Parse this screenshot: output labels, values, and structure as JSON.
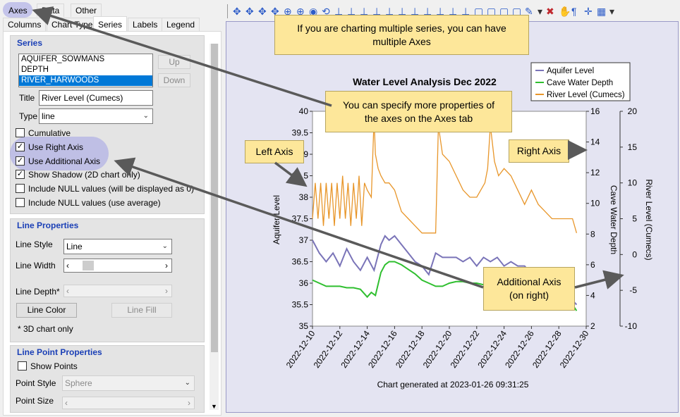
{
  "tabs_top": [
    "Axes",
    "Data",
    "Other"
  ],
  "tabs_second": [
    "Columns",
    "Chart Type",
    "Series",
    "Labels",
    "Legend"
  ],
  "series": {
    "title": "Series",
    "items": [
      "AQUIFER_SOWMANS",
      "DEPTH",
      "RIVER_HARWOODS"
    ],
    "selected_index": 2,
    "up_label": "Up",
    "down_label": "Down",
    "title_label": "Title",
    "title_value": "River Level (Cumecs)",
    "type_label": "Type",
    "type_value": "line",
    "checkboxes": [
      {
        "label": "Cumulative",
        "checked": false
      },
      {
        "label": "Use Right Axis",
        "checked": true
      },
      {
        "label": "Use Additional Axis",
        "checked": true
      },
      {
        "label": "Show Shadow (2D chart only)",
        "checked": true
      },
      {
        "label": "Include NULL values (will be displayed as 0)",
        "checked": false
      },
      {
        "label": "Include NULL values (use average)",
        "checked": false
      }
    ]
  },
  "line_properties": {
    "title": "Line Properties",
    "style_label": "Line Style",
    "style_value": "Line",
    "width_label": "Line Width",
    "depth_label": "Line Depth*",
    "color_button": "Line Color",
    "fill_button": "Line Fill",
    "footnote": "* 3D chart only"
  },
  "point_properties": {
    "title": "Line Point Properties",
    "show_points_label": "Show Points",
    "style_label": "Point Style",
    "style_value": "Sphere",
    "size_label": "Point Size"
  },
  "toolbar_icons": [
    "move-icon",
    "move-icon",
    "move-icon",
    "move-icon",
    "zoom-icon",
    "zoom-icon",
    "eye-icon",
    "rotate-icon",
    "axis-icon",
    "axis-icon",
    "axis-icon",
    "axis-icon",
    "axis-icon",
    "axis-icon",
    "axis-icon",
    "axis-icon",
    "axis-icon",
    "axis-icon",
    "axis-icon",
    "cube-icon",
    "cube-icon",
    "cube-icon",
    "cube-icon",
    "pen-icon",
    "dropdown-icon",
    "cancel-icon",
    "hand-icon",
    "annotate-icon",
    "crosshair-icon",
    "export-icon",
    "dropdown-icon"
  ],
  "callouts": {
    "multiple_axes": "If you are charting multiple series, you can have multiple Axes",
    "axes_tab": "You can specify more properties of the axes on the Axes tab",
    "left_axis": "Left Axis",
    "right_axis": "Right Axis",
    "additional_axis": "Additional Axis (on right)"
  },
  "chart_data": {
    "type": "line",
    "title": "Water Level Analysis Dec 2022",
    "footer": "Chart generated at 2023-01-26 09:31:25",
    "x_ticks": [
      "2022-12-10",
      "2022-12-12",
      "2022-12-14",
      "2022-12-16",
      "2022-12-18",
      "2022-12-20",
      "2022-12-22",
      "2022-12-24",
      "2022-12-26",
      "2022-12-28",
      "2022-12-30"
    ],
    "axes": {
      "left": {
        "label": "Aquifer Level",
        "range": [
          35,
          40
        ],
        "ticks": [
          "35",
          "35.5",
          "36",
          "36.5",
          "37",
          "37.5",
          "38",
          "38.5",
          "39",
          "39.5",
          "40"
        ]
      },
      "right": {
        "label": "Cave Water Depth",
        "range": [
          2,
          16
        ],
        "ticks": [
          "2",
          "4",
          "6",
          "8",
          "10",
          "12",
          "14",
          "16"
        ]
      },
      "additional": {
        "label": "River Level (Cumecs)",
        "range": [
          -10,
          20
        ],
        "ticks": [
          "-10",
          "-5",
          "0",
          "5",
          "10",
          "15",
          "20"
        ]
      }
    },
    "legend_position": "top-right",
    "series": [
      {
        "name": "Aquifer Level",
        "axis": "left",
        "color": "#7a74b8",
        "x": [
          10,
          10.5,
          11,
          11.5,
          12,
          12.5,
          13,
          13.5,
          14,
          14.5,
          15,
          15.3,
          15.6,
          16,
          16.5,
          17,
          17.5,
          18,
          18.5,
          19,
          19.5,
          20,
          20.5,
          21,
          21.5,
          22,
          22.5,
          23,
          23.5,
          24,
          24.5,
          25,
          25.5,
          26,
          26.5,
          27,
          27.5,
          28,
          28.5,
          29,
          29.3
        ],
        "y": [
          37.0,
          36.7,
          36.5,
          36.7,
          36.4,
          36.8,
          36.5,
          36.3,
          36.6,
          36.3,
          36.9,
          37.1,
          37.0,
          37.1,
          36.9,
          36.7,
          36.5,
          36.4,
          36.2,
          36.7,
          36.6,
          36.6,
          36.6,
          36.5,
          36.6,
          36.4,
          36.6,
          36.5,
          36.6,
          36.4,
          36.5,
          36.4,
          36.4,
          36.2,
          36.1,
          36.1,
          36.0,
          35.9,
          35.8,
          35.6,
          35.5
        ]
      },
      {
        "name": "Cave Water Depth",
        "axis": "right",
        "color": "#2fbf2f",
        "x": [
          10,
          10.5,
          11,
          11.5,
          12,
          12.5,
          13,
          13.5,
          14,
          14.3,
          14.6,
          15,
          15.3,
          15.6,
          16,
          16.5,
          17,
          17.5,
          18,
          18.5,
          19,
          19.5,
          20,
          20.5,
          21,
          21.5,
          22,
          22.5,
          23,
          23.5,
          24,
          24.5,
          25,
          25.5,
          26,
          26.5,
          27,
          27.5,
          28,
          28.5,
          29,
          29.3
        ],
        "y": [
          5.0,
          4.8,
          4.6,
          4.6,
          4.6,
          4.5,
          4.5,
          4.4,
          3.9,
          4.2,
          4.0,
          5.5,
          6.0,
          6.2,
          6.2,
          6.0,
          5.7,
          5.4,
          5.0,
          4.8,
          4.6,
          4.6,
          4.8,
          4.9,
          4.9,
          4.8,
          4.8,
          4.7,
          4.8,
          4.9,
          4.8,
          4.7,
          4.7,
          4.6,
          4.5,
          4.4,
          4.3,
          4.1,
          4.0,
          3.8,
          3.4,
          3.0
        ]
      },
      {
        "name": "River Level (Cumecs)",
        "axis": "additional",
        "color": "#e8962a",
        "x": [
          10,
          10.2,
          10.4,
          10.6,
          10.8,
          11,
          11.2,
          11.4,
          11.6,
          11.8,
          12,
          12.2,
          12.4,
          12.6,
          12.8,
          13,
          13.2,
          13.4,
          13.6,
          13.8,
          14,
          14.3,
          14.5,
          14.6,
          14.8,
          15,
          15.3,
          15.6,
          16,
          16.5,
          17,
          17.5,
          18,
          18.5,
          18.8,
          19,
          19.2,
          19.5,
          20,
          20.5,
          21,
          21.5,
          22,
          22.3,
          22.6,
          22.8,
          23,
          23.3,
          23.6,
          24,
          24.5,
          25,
          25.5,
          26,
          26.5,
          27,
          27.5,
          28,
          28.5,
          29,
          29.3
        ],
        "y": [
          5,
          10,
          5,
          10,
          4,
          10,
          5,
          10,
          4,
          10,
          5,
          11,
          5,
          10,
          4,
          10,
          5,
          11,
          4,
          10,
          9,
          8,
          19,
          14,
          12,
          11,
          10,
          10,
          9,
          6,
          5,
          4,
          3,
          3,
          3,
          3,
          18,
          14,
          13,
          11,
          9,
          8,
          8,
          9,
          10,
          12,
          18,
          13,
          11,
          12,
          11,
          9,
          7,
          9,
          7,
          6,
          5,
          5,
          5,
          5,
          3
        ]
      }
    ]
  }
}
